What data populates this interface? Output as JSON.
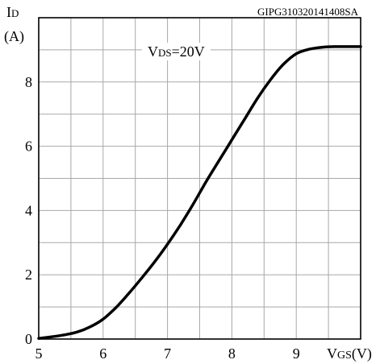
{
  "chart_data": {
    "type": "line",
    "figure_id": "GIPG310320141408SA",
    "annotation": "V<sub>DS</sub>=20V",
    "annotation_parts": {
      "main": "V",
      "sub": "DS",
      "rest": "=20V"
    },
    "ylabel_parts": {
      "main": "I",
      "sub": "D",
      "unit": "(A)"
    },
    "xlabel_parts": {
      "main": "V",
      "sub": "GS",
      "unit": "(V)"
    },
    "xlim": [
      5,
      10
    ],
    "ylim": [
      0,
      10
    ],
    "xticks": [
      5,
      6,
      7,
      8,
      9
    ],
    "yticks": [
      0,
      2,
      4,
      6,
      8
    ],
    "grid": true,
    "x_grid_step": 0.5,
    "y_grid_step": 1,
    "series": [
      {
        "x": [
          5.0,
          5.2,
          5.4,
          5.6,
          5.8,
          6.0,
          6.2,
          6.4,
          6.6,
          6.8,
          7.0,
          7.2,
          7.4,
          7.6,
          7.8,
          8.0,
          8.2,
          8.4,
          8.6,
          8.8,
          9.0,
          9.2,
          9.4,
          9.6,
          9.8,
          10.0
        ],
        "y": [
          0.02,
          0.07,
          0.13,
          0.22,
          0.38,
          0.62,
          0.98,
          1.42,
          1.9,
          2.4,
          2.95,
          3.55,
          4.2,
          4.9,
          5.55,
          6.2,
          6.85,
          7.5,
          8.07,
          8.55,
          8.88,
          9.02,
          9.08,
          9.1,
          9.1,
          9.1
        ]
      }
    ]
  }
}
